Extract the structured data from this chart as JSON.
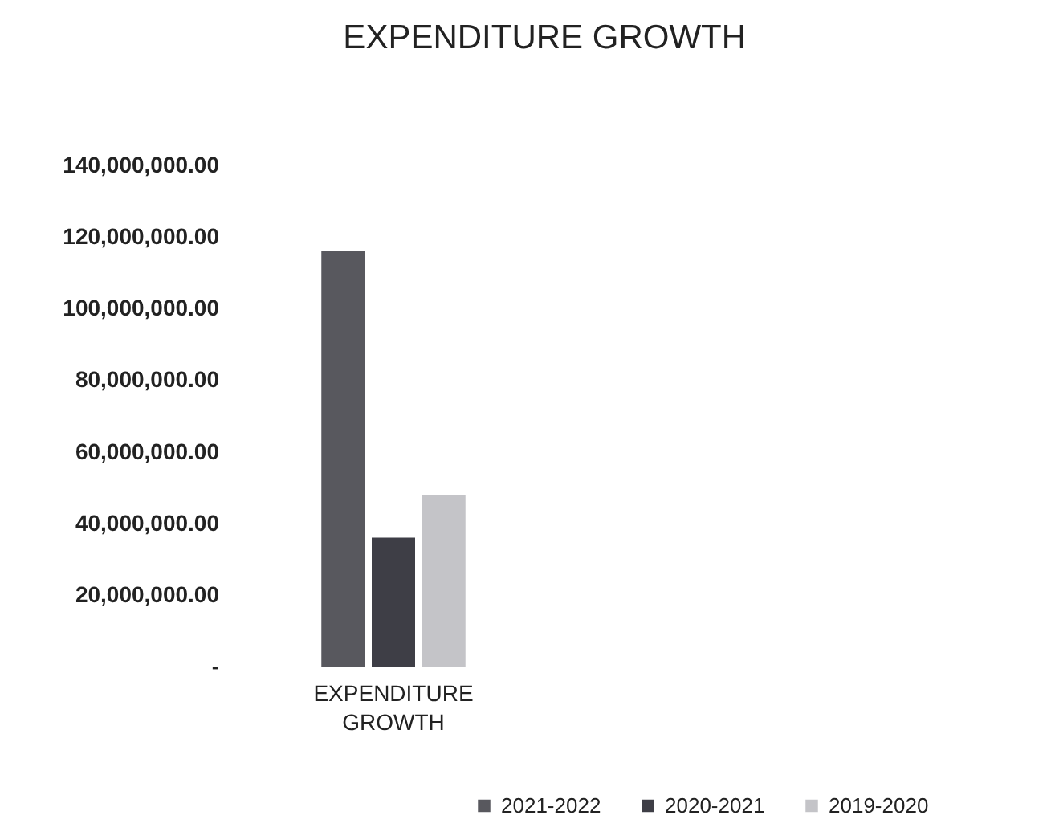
{
  "chart_data": {
    "type": "bar",
    "title": "EXPENDITURE GROWTH",
    "categories": [
      "EXPENDITURE GROWTH"
    ],
    "series": [
      {
        "name": "2021-2022",
        "color": "#58585e",
        "values": [
          116000000
        ]
      },
      {
        "name": "2020-2021",
        "color": "#3e3e46",
        "values": [
          36000000
        ]
      },
      {
        "name": "2019-2020",
        "color": "#c4c4c8",
        "values": [
          48000000
        ]
      }
    ],
    "ylim": [
      0,
      140000000
    ],
    "yticks": [
      {
        "value": 0,
        "label": "-"
      },
      {
        "value": 20000000,
        "label": "20,000,000.00"
      },
      {
        "value": 40000000,
        "label": "40,000,000.00"
      },
      {
        "value": 60000000,
        "label": "60,000,000.00"
      },
      {
        "value": 80000000,
        "label": "80,000,000.00"
      },
      {
        "value": 100000000,
        "label": "100,000,000.00"
      },
      {
        "value": 120000000,
        "label": "120,000,000.00"
      },
      {
        "value": 140000000,
        "label": "140,000,000.00"
      }
    ],
    "grid": false,
    "legend": "bottom right"
  }
}
